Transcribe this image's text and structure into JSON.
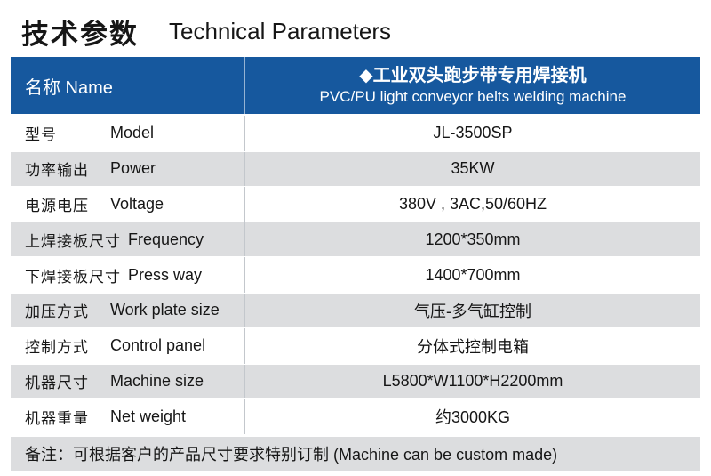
{
  "title": {
    "zh": "技术参数",
    "en": "Technical Parameters"
  },
  "table": {
    "header": {
      "name_label": "名称 Name",
      "product_title": "◆工业双头跑步带专用焊接机",
      "product_subtitle": "PVC/PU light conveyor belts welding machine"
    },
    "rows": [
      {
        "zh": "型号",
        "en": "Model",
        "value": "JL-3500SP"
      },
      {
        "zh": "功率输出",
        "en": "Power",
        "value": "35KW"
      },
      {
        "zh": "电源电压",
        "en": "Voltage",
        "value": "380V , 3AC,50/60HZ"
      },
      {
        "zh": "上焊接板尺寸",
        "en": "Frequency",
        "value": "1200*350mm"
      },
      {
        "zh": "下焊接板尺寸",
        "en": "Press way",
        "value": "1400*700mm"
      },
      {
        "zh": "加压方式",
        "en": "Work plate size",
        "value": "气压-多气缸控制"
      },
      {
        "zh": "控制方式",
        "en": "Control panel",
        "value": "分体式控制电箱"
      },
      {
        "zh": "机器尺寸",
        "en": "Machine size",
        "value": "L5800*W1100*H2200mm"
      },
      {
        "zh": "机器重量",
        "en": "Net weight",
        "value": "约3000KG"
      }
    ],
    "note": "备注：可根据客户的产品尺寸要求特别订制 (Machine can be custom made)"
  },
  "colors": {
    "header_bg": "#16589E",
    "header_text": "#ffffff",
    "alt_row_bg": "#dcdddf",
    "column_divider": "#c3c7cc",
    "body_text": "#161616"
  }
}
